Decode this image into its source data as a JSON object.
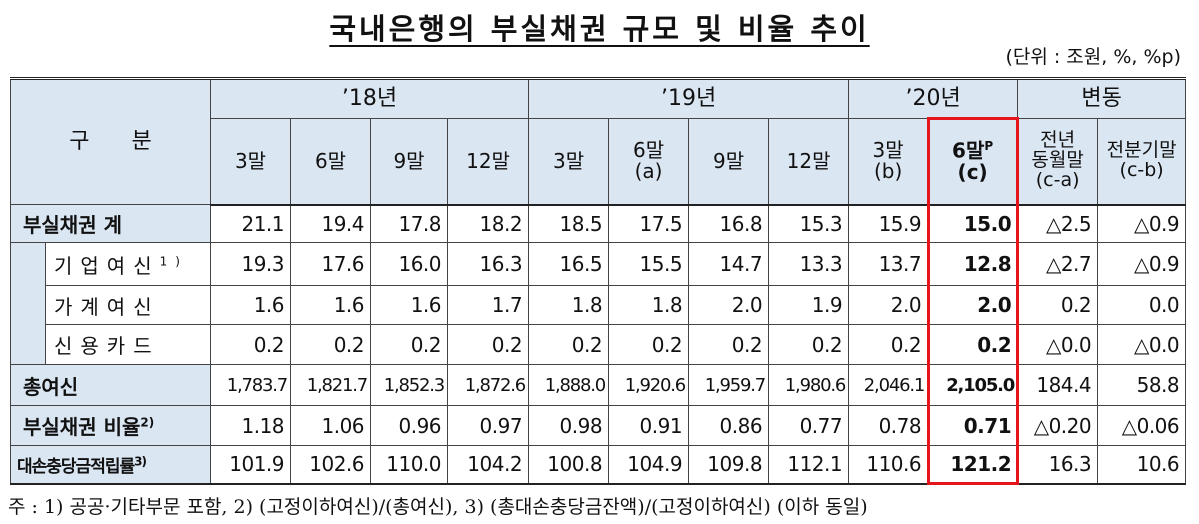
{
  "title": "국내은행의 부실채권 규모 및 비율 추이",
  "unit": "(단위 : 조원, %, %p)",
  "table": {
    "corner": "구      분",
    "groups": [
      "’18년",
      "’19년",
      "’20년",
      "변동"
    ],
    "columns": [
      {
        "lines": [
          "3말"
        ]
      },
      {
        "lines": [
          "6말"
        ]
      },
      {
        "lines": [
          "9말"
        ]
      },
      {
        "lines": [
          "12말"
        ]
      },
      {
        "lines": [
          "3말"
        ]
      },
      {
        "lines": [
          "6말",
          "(a)"
        ]
      },
      {
        "lines": [
          "9말"
        ]
      },
      {
        "lines": [
          "12말"
        ]
      },
      {
        "lines": [
          "3말",
          "(b)"
        ]
      },
      {
        "lines": [
          "6말",
          "(c)"
        ],
        "sup": "P"
      },
      {
        "lines": [
          "전년",
          "동월말",
          "(c-a)"
        ]
      },
      {
        "lines": [
          "전분기말",
          "(c-b)"
        ]
      }
    ],
    "rows": [
      {
        "label": "부실채권 계",
        "cells": [
          "21.1",
          "19.4",
          "17.8",
          "18.2",
          "18.5",
          "17.5",
          "16.8",
          "15.3",
          "15.9",
          "15.0",
          "△2.5",
          "△0.9"
        ]
      },
      {
        "label": "기업여신",
        "note": "1)",
        "cells": [
          "19.3",
          "17.6",
          "16.0",
          "16.3",
          "16.5",
          "15.5",
          "14.7",
          "13.3",
          "13.7",
          "12.8",
          "△2.7",
          "△0.9"
        ]
      },
      {
        "label": "가계여신",
        "cells": [
          "1.6",
          "1.6",
          "1.6",
          "1.7",
          "1.8",
          "1.8",
          "2.0",
          "1.9",
          "2.0",
          "2.0",
          "0.2",
          "0.0"
        ]
      },
      {
        "label": "신용카드",
        "cells": [
          "0.2",
          "0.2",
          "0.2",
          "0.2",
          "0.2",
          "0.2",
          "0.2",
          "0.2",
          "0.2",
          "0.2",
          "△0.0",
          "△0.0"
        ]
      },
      {
        "label": "총여신",
        "cells": [
          "1,783.7",
          "1,821.7",
          "1,852.3",
          "1,872.6",
          "1,888.0",
          "1,920.6",
          "1,959.7",
          "1,980.6",
          "2,046.1",
          "2,105.0",
          "184.4",
          "58.8"
        ]
      },
      {
        "label": "부실채권 비율",
        "note": "2)",
        "cells": [
          "1.18",
          "1.06",
          "0.96",
          "0.97",
          "0.98",
          "0.91",
          "0.86",
          "0.77",
          "0.78",
          "0.71",
          "△0.20",
          "△0.06"
        ]
      },
      {
        "label": "대손충당금적립률",
        "note": "3)",
        "cells": [
          "101.9",
          "102.6",
          "110.0",
          "104.2",
          "100.8",
          "104.9",
          "109.8",
          "112.1",
          "110.6",
          "121.2",
          "16.3",
          "10.6"
        ]
      }
    ]
  },
  "footnote": "주 : 1) 공공·기타부문 포함, 2) (고정이하여신)/(총여신), 3) (총대손충당금잔액)/(고정이하여신) (이하 동일)"
}
